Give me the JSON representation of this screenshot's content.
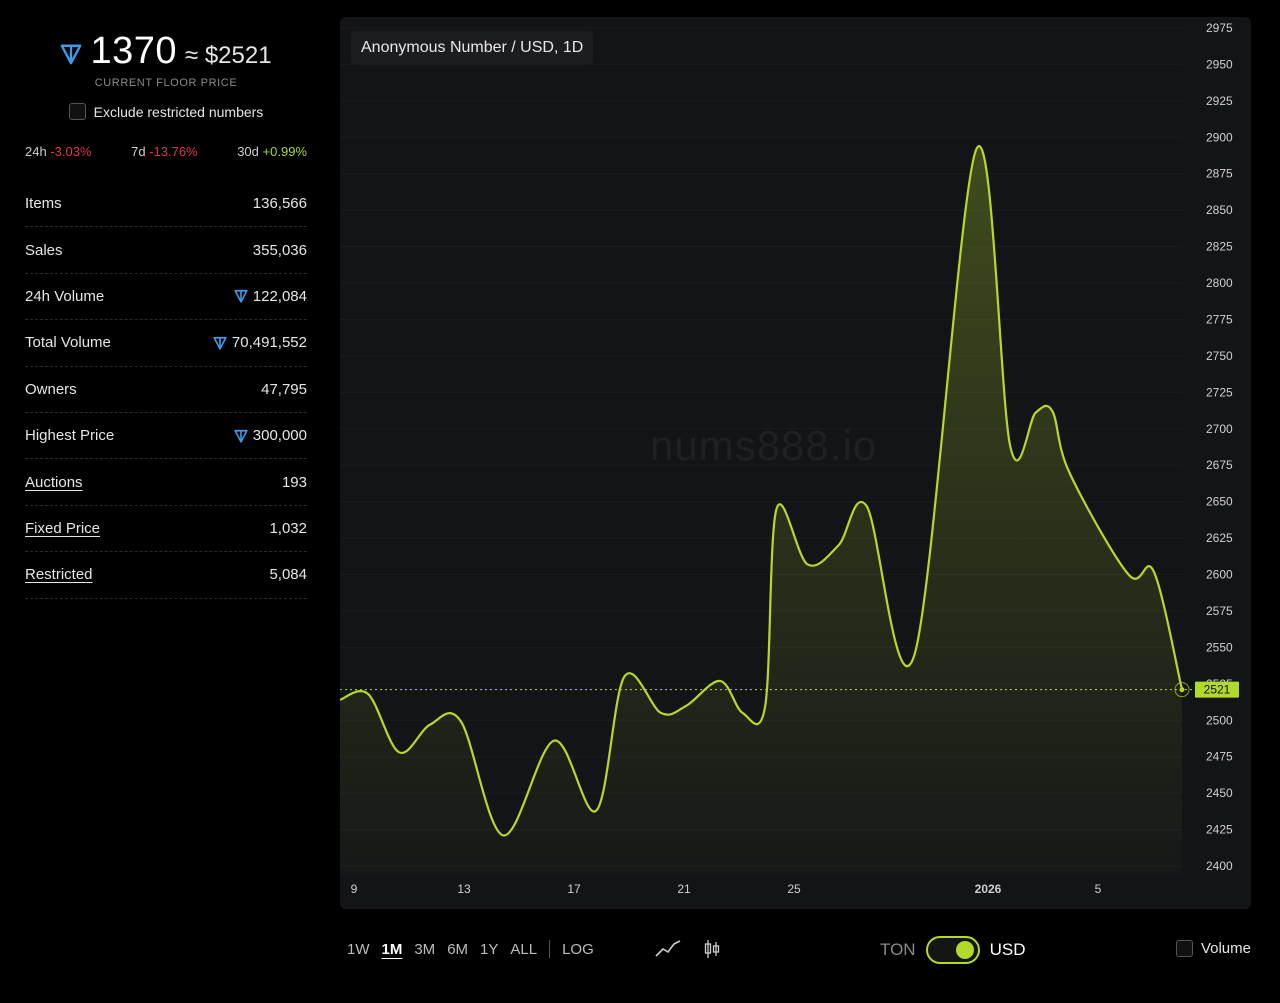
{
  "floor": {
    "ton_price": "1370",
    "usd_price": "≈ $2521",
    "caption": "CURRENT FLOOR PRICE",
    "exclude_label": "Exclude restricted numbers"
  },
  "changes": [
    {
      "period": "24h",
      "value": "-3.03%",
      "sign": "neg"
    },
    {
      "period": "7d",
      "value": "-13.76%",
      "sign": "neg"
    },
    {
      "period": "30d",
      "value": "+0.99%",
      "sign": "pos"
    }
  ],
  "stats": [
    {
      "label": "Items",
      "value": "136,566",
      "ton": false,
      "link": false
    },
    {
      "label": "Sales",
      "value": "355,036",
      "ton": false,
      "link": false
    },
    {
      "label": "24h Volume",
      "value": "122,084",
      "ton": true,
      "link": false
    },
    {
      "label": "Total Volume",
      "value": "70,491,552",
      "ton": true,
      "link": false
    },
    {
      "label": "Owners",
      "value": "47,795",
      "ton": false,
      "link": false
    },
    {
      "label": "Highest Price",
      "value": "300,000",
      "ton": true,
      "link": false
    },
    {
      "label": "Auctions",
      "value": "193",
      "ton": false,
      "link": true
    },
    {
      "label": "Fixed Price",
      "value": "1,032",
      "ton": false,
      "link": true
    },
    {
      "label": "Restricted",
      "value": "5,084",
      "ton": false,
      "link": true
    }
  ],
  "chart": {
    "title": "Anonymous Number / USD, 1D",
    "watermark": "nums888.io",
    "last_label": "2521"
  },
  "chart_data": {
    "type": "area",
    "title": "Anonymous Number / USD, 1D",
    "x_tick_labels": [
      "9",
      "13",
      "17",
      "21",
      "25",
      "2026",
      "5"
    ],
    "y_ticks": [
      2400,
      2425,
      2450,
      2475,
      2500,
      2525,
      2550,
      2575,
      2600,
      2625,
      2650,
      2675,
      2700,
      2725,
      2750,
      2775,
      2800,
      2825,
      2850,
      2875,
      2900,
      2925,
      2950,
      2975
    ],
    "ylim": [
      2400,
      2975
    ],
    "x": [
      8.5,
      9.5,
      10.6,
      11.7,
      12.8,
      14.3,
      16.1,
      17.6,
      18.6,
      19.9,
      20.8,
      22.0,
      22.8,
      23.6,
      24.0,
      25.1,
      26.2,
      27.2,
      28.9,
      31.1,
      32.3,
      33.2,
      33.8,
      34.4,
      36.5,
      37.4,
      38.4
    ],
    "values": [
      2514,
      2518,
      2478,
      2497,
      2499,
      2421,
      2486,
      2438,
      2530,
      2505,
      2510,
      2527,
      2505,
      2510,
      2645,
      2607,
      2620,
      2647,
      2545,
      2892,
      2688,
      2711,
      2712,
      2670,
      2600,
      2602,
      2521
    ],
    "last_value": 2521,
    "color": "#b4d92d",
    "grid": true
  },
  "controls": {
    "ranges": [
      {
        "label": "1W",
        "active": false
      },
      {
        "label": "1M",
        "active": true
      },
      {
        "label": "3M",
        "active": false
      },
      {
        "label": "6M",
        "active": false
      },
      {
        "label": "1Y",
        "active": false
      },
      {
        "label": "ALL",
        "active": false
      }
    ],
    "log_label": "LOG",
    "currency_off": "TON",
    "currency_on": "USD",
    "volume_label": "Volume"
  },
  "colors": {
    "accent": "#b4d92d",
    "ton_blue": "#3d9be9",
    "negative": "#e0344a",
    "positive": "#a6d93a"
  }
}
